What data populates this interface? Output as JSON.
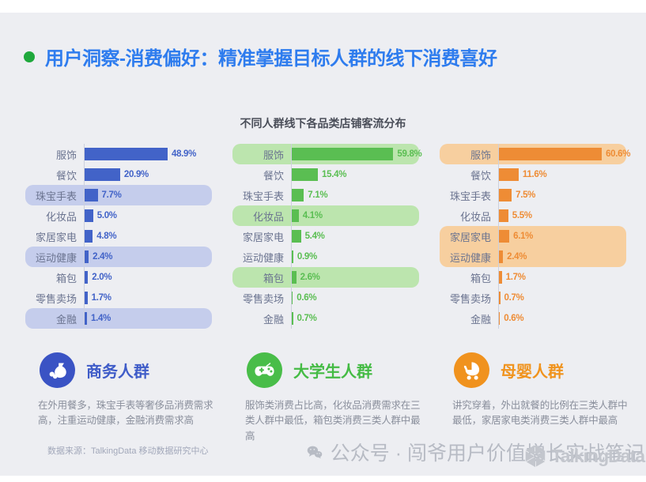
{
  "header": {
    "bullet_color": "#1fa83c",
    "title": "用户洞察-消费偏好：精准掌握目标人群的线下消费喜好",
    "title_color": "#2e7cee"
  },
  "chart_data": {
    "type": "bar",
    "orientation": "horizontal",
    "title": "不同人群线下各品类店铺客流分布",
    "unit": "%",
    "xlim": [
      0,
      75
    ],
    "grid": false,
    "legend_position": "below-as-persona-cards",
    "categories": [
      "服饰",
      "餐饮",
      "珠宝手表",
      "化妆品",
      "家居家电",
      "运动健康",
      "箱包",
      "零售卖场",
      "金融"
    ],
    "series": [
      {
        "name": "商务人群",
        "bar_color": "#4263c8",
        "highlight_bg": "#c5cdec",
        "values": [
          48.9,
          20.9,
          7.7,
          5.0,
          4.8,
          2.4,
          2.0,
          1.7,
          1.4
        ],
        "value_labels": [
          "48.9%",
          "20.9%",
          "7.7%",
          "5.0%",
          "4.8%",
          "2.4%",
          "2.0%",
          "1.7%",
          "1.4%"
        ],
        "highlighted_categories": [
          "珠宝手表",
          "运动健康",
          "金融"
        ]
      },
      {
        "name": "大学生人群",
        "bar_color": "#5abe52",
        "highlight_bg": "#bce5ae",
        "values": [
          59.8,
          15.4,
          7.1,
          4.1,
          5.4,
          0.9,
          2.6,
          0.6,
          0.7
        ],
        "value_labels": [
          "59.8%",
          "15.4%",
          "7.1%",
          "4.1%",
          "5.4%",
          "0.9%",
          "2.6%",
          "0.6%",
          "0.7%"
        ],
        "highlighted_categories": [
          "服饰",
          "化妆品",
          "箱包"
        ]
      },
      {
        "name": "母婴人群",
        "bar_color": "#ee8c35",
        "highlight_bg": "#f7cf9f",
        "values": [
          60.6,
          11.6,
          7.5,
          5.5,
          6.1,
          2.4,
          1.7,
          0.7,
          0.6
        ],
        "value_labels": [
          "60.6%",
          "11.6%",
          "7.5%",
          "5.5%",
          "6.1%",
          "2.4%",
          "1.7%",
          "0.7%",
          "0.6%"
        ],
        "highlighted_categories": [
          "服饰",
          "家居家电",
          "运动健康"
        ]
      }
    ]
  },
  "personas": [
    {
      "name": "商务人群",
      "icon": "money-bag-icon",
      "circle_color": "#3a53c4",
      "name_color": "#3f5cc8",
      "description": "在外用餐多，珠宝手表等奢侈品消费需求高，注重运动健康，金融消费需求高"
    },
    {
      "name": "大学生人群",
      "icon": "game-controller-icon",
      "circle_color": "#49bd49",
      "name_color": "#44bb44",
      "description": "服饰类消费占比高，化妆品消费需求在三类人群中最低，箱包类消费三类人群中最高"
    },
    {
      "name": "母婴人群",
      "icon": "baby-stroller-icon",
      "circle_color": "#f0921e",
      "name_color": "#f0931d",
      "description": "讲究穿着，外出就餐的比例在三类人群中最低，家居家电类消费三类人群中最高"
    }
  ],
  "footer": {
    "source_note": "数据来源：TalkingData 移动数据研究中心",
    "watermark_text": "公众号 · 闯爷用户价值增长实战笔记",
    "watermark_logo_text": "TalkingData"
  }
}
